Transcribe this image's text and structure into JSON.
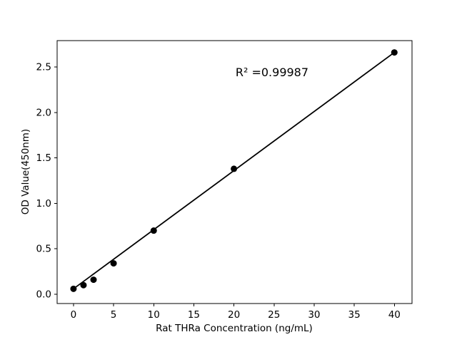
{
  "figure": {
    "background": "#ffffff"
  },
  "chart_data": {
    "type": "scatter",
    "title": "",
    "xlabel": "Rat THRa Concentration (ng/mL)",
    "ylabel": "OD Value(450nm)",
    "annotation": {
      "text": "R² =0.99987",
      "x": 20.2,
      "y": 2.4
    },
    "xlim": [
      -2.04,
      42.2
    ],
    "ylim": [
      -0.102,
      2.79
    ],
    "grid": false,
    "legend": null,
    "x_ticks": [
      {
        "label": "0",
        "value": 0
      },
      {
        "label": "5",
        "value": 5
      },
      {
        "label": "10",
        "value": 10
      },
      {
        "label": "15",
        "value": 15
      },
      {
        "label": "20",
        "value": 20
      },
      {
        "label": "25",
        "value": 25
      },
      {
        "label": "30",
        "value": 30
      },
      {
        "label": "35",
        "value": 35
      },
      {
        "label": "40",
        "value": 40
      }
    ],
    "y_ticks": [
      {
        "label": "0.0",
        "value": 0.0
      },
      {
        "label": "0.5",
        "value": 0.5
      },
      {
        "label": "1.0",
        "value": 1.0
      },
      {
        "label": "1.5",
        "value": 1.5
      },
      {
        "label": "2.0",
        "value": 2.0
      },
      {
        "label": "2.5",
        "value": 2.5
      }
    ],
    "series": [
      {
        "name": "standard-curve-points",
        "marker": "circle",
        "color": "#000000",
        "points": [
          {
            "x": 0,
            "y": 0.06
          },
          {
            "x": 1.25,
            "y": 0.1
          },
          {
            "x": 2.5,
            "y": 0.16
          },
          {
            "x": 5,
            "y": 0.34
          },
          {
            "x": 10,
            "y": 0.7
          },
          {
            "x": 20,
            "y": 1.38
          },
          {
            "x": 40,
            "y": 2.66
          }
        ]
      }
    ],
    "trendline": {
      "x1": 0,
      "y1": 0.06,
      "x2": 40,
      "y2": 2.66,
      "color": "#000000"
    },
    "colors": {
      "line": "#000000",
      "marker": "#000000",
      "spine": "#000000",
      "tick": "#000000"
    }
  }
}
